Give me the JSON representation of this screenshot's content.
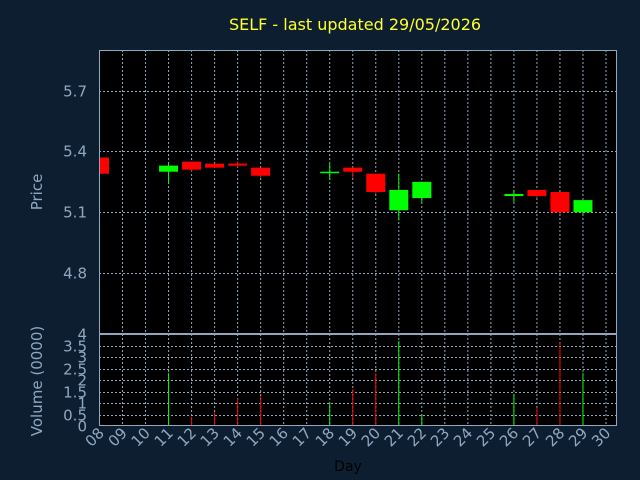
{
  "chart_data": {
    "type": "candlestick",
    "title": "SELF - last updated 29/05/2026",
    "x_label": "Day",
    "price_panel": {
      "y_label": "Price",
      "y_range": [
        4.5,
        5.9
      ],
      "y_ticks": [
        "5.7",
        "5.4",
        "5.1",
        "4.8"
      ]
    },
    "volume_panel": {
      "y_label": "Volume (0000)",
      "y_range": [
        0,
        4
      ],
      "y_ticks": [
        "4",
        "3.5",
        "3",
        "2.5",
        "2",
        "1.5",
        "1",
        "0.5",
        "0"
      ]
    },
    "x_ticks": [
      "08",
      "09",
      "10",
      "11",
      "12",
      "13",
      "14",
      "15",
      "16",
      "17",
      "18",
      "19",
      "20",
      "21",
      "22",
      "23",
      "24",
      "25",
      "26",
      "27",
      "28",
      "29",
      "30"
    ],
    "candles": [
      {
        "day": "08",
        "open": 5.37,
        "close": 5.29,
        "high": 5.37,
        "low": 5.29,
        "volume": 0
      },
      {
        "day": "11",
        "open": 5.3,
        "close": 5.33,
        "high": 5.34,
        "low": 5.24,
        "volume": 2.3
      },
      {
        "day": "12",
        "open": 5.35,
        "close": 5.31,
        "high": 5.35,
        "low": 5.3,
        "volume": 0.4
      },
      {
        "day": "13",
        "open": 5.34,
        "close": 5.32,
        "high": 5.34,
        "low": 5.32,
        "volume": 0.6
      },
      {
        "day": "14",
        "open": 5.34,
        "close": 5.33,
        "high": 5.35,
        "low": 5.32,
        "volume": 1.2
      },
      {
        "day": "15",
        "open": 5.32,
        "close": 5.28,
        "high": 5.32,
        "low": 5.27,
        "volume": 1.3
      },
      {
        "day": "18",
        "open": 5.3,
        "close": 5.3,
        "high": 5.34,
        "low": 5.26,
        "volume": 1.0
      },
      {
        "day": "19",
        "open": 5.32,
        "close": 5.3,
        "high": 5.32,
        "low": 5.27,
        "volume": 1.6
      },
      {
        "day": "20",
        "open": 5.29,
        "close": 5.2,
        "high": 5.29,
        "low": 5.19,
        "volume": 2.3
      },
      {
        "day": "21",
        "open": 5.11,
        "close": 5.21,
        "high": 5.29,
        "low": 5.06,
        "volume": 3.7
      },
      {
        "day": "22",
        "open": 5.17,
        "close": 5.25,
        "high": 5.25,
        "low": 5.15,
        "volume": 0.5
      },
      {
        "day": "26",
        "open": 5.18,
        "close": 5.19,
        "high": 5.21,
        "low": 5.15,
        "volume": 1.4
      },
      {
        "day": "27",
        "open": 5.21,
        "close": 5.18,
        "high": 5.21,
        "low": 5.17,
        "volume": 0.8
      },
      {
        "day": "28",
        "open": 5.2,
        "close": 5.1,
        "high": 5.2,
        "low": 5.09,
        "volume": 3.6
      },
      {
        "day": "29",
        "open": 5.1,
        "close": 5.16,
        "high": 5.16,
        "low": 5.09,
        "volume": 2.3
      }
    ],
    "colors": {
      "background": "#0e1e31",
      "plot_background": "#000000",
      "up": "#00ff00",
      "down": "#ff0000",
      "axis_text": "#8fa8c0",
      "title": "#ffff33"
    }
  }
}
